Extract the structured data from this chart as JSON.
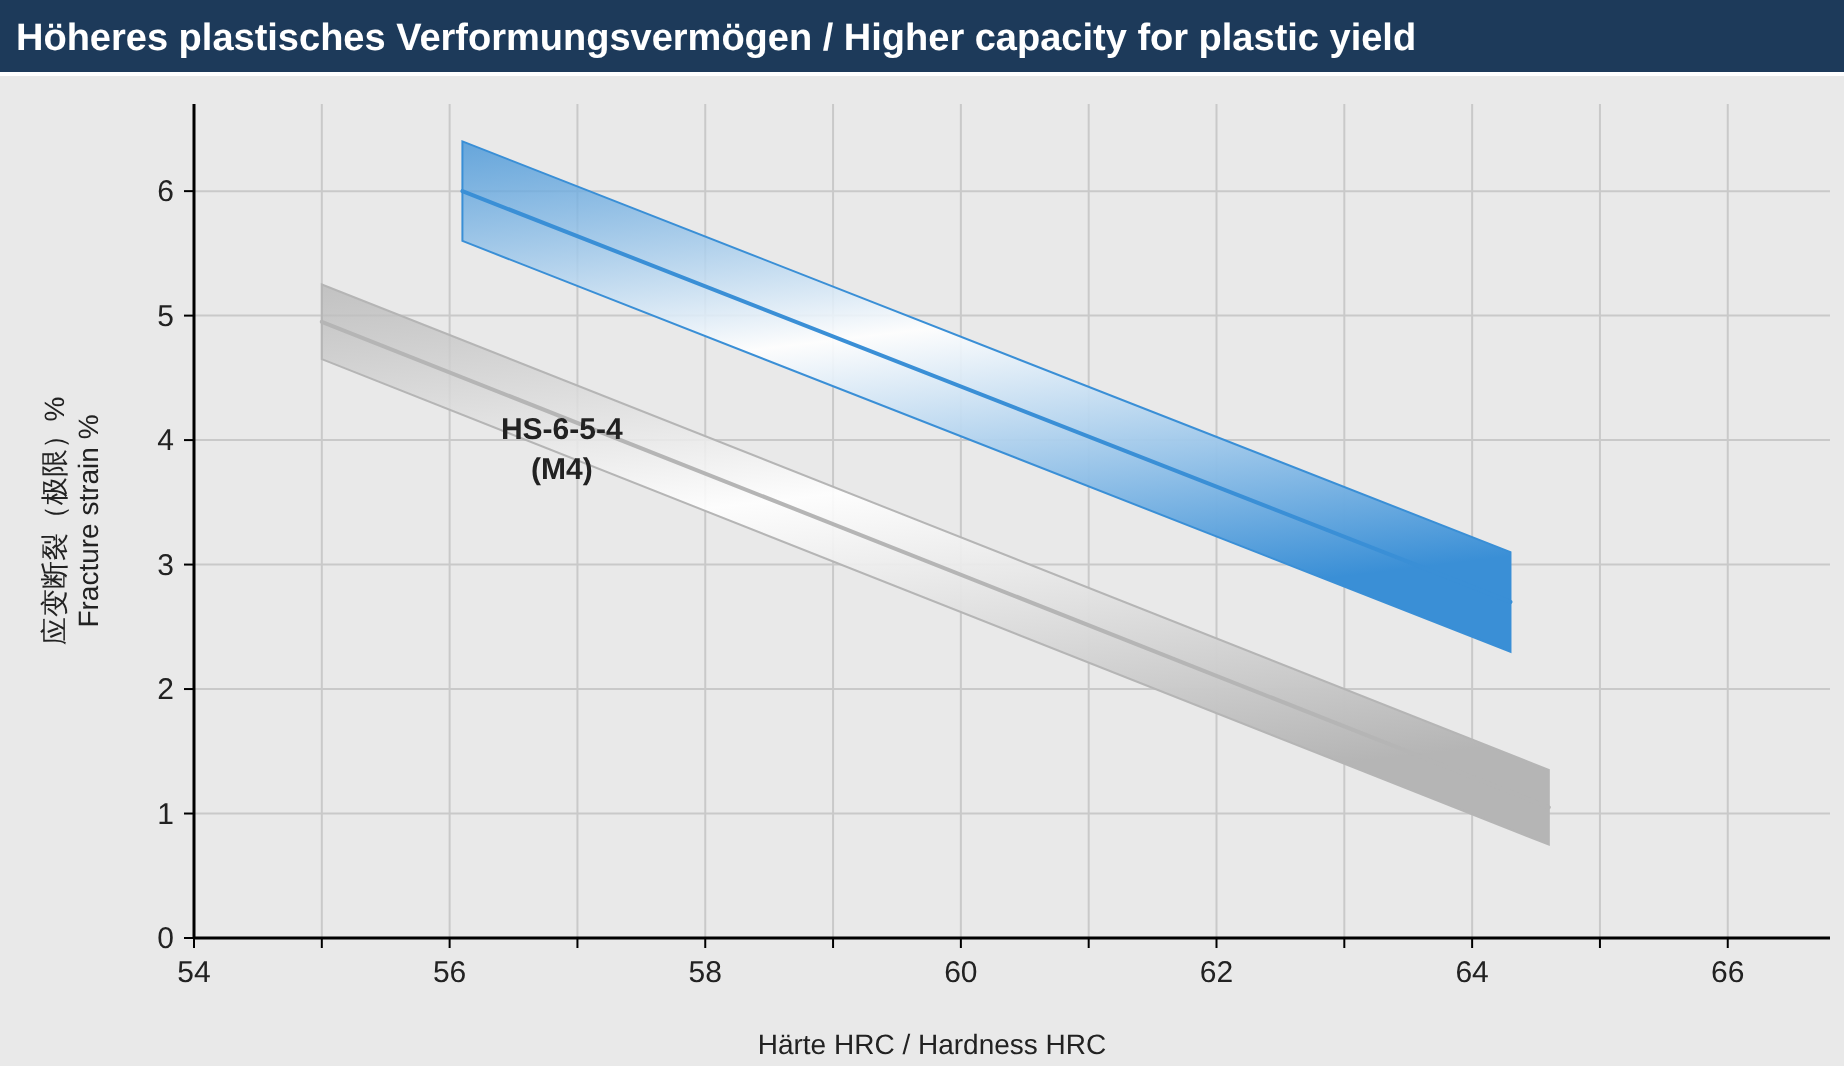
{
  "chart_data": {
    "type": "line",
    "title": "Höheres plastisches Verformungsvermögen / Higher capacity for plastic yield",
    "xlabel": "Härte HRC / Hardness HRC",
    "ylabel": "应变断裂（极限）%\nFracture strain %",
    "xlim": [
      54,
      66.8
    ],
    "ylim": [
      0,
      6.7
    ],
    "xticks": [
      54,
      {
        "value": 55,
        "label": null
      },
      56,
      {
        "value": 57,
        "label": null
      },
      58,
      {
        "value": 59,
        "label": null
      },
      60,
      {
        "value": 61,
        "label": null
      },
      62,
      {
        "value": 63,
        "label": null
      },
      64,
      {
        "value": 65,
        "label": null
      },
      66
    ],
    "yticks": [
      0,
      1,
      2,
      3,
      4,
      5,
      6
    ],
    "grid": true,
    "series": [
      {
        "name": "HS-6-5-4 (M4)",
        "color": "#b5b5b5",
        "x": [
          55.0,
          64.6
        ],
        "values": [
          4.95,
          1.05
        ],
        "lower": [
          4.65,
          0.75
        ],
        "upper": [
          5.25,
          1.35
        ]
      },
      {
        "color": "#3a8fd6",
        "x": [
          56.1,
          64.3
        ],
        "values": [
          6.0,
          2.7
        ],
        "lower": [
          5.6,
          2.3
        ],
        "upper": [
          6.4,
          3.1
        ]
      }
    ]
  }
}
